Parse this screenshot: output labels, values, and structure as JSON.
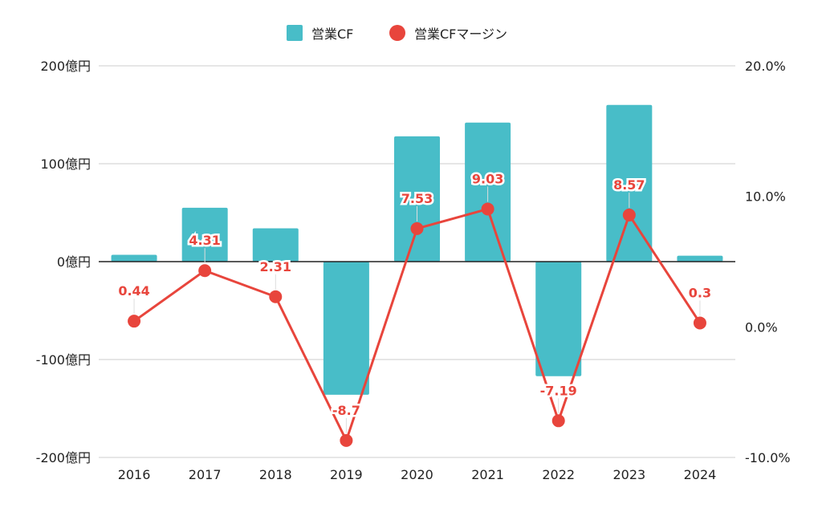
{
  "chart_data": {
    "type": "bar+line",
    "categories": [
      "2016",
      "2017",
      "2018",
      "2019",
      "2020",
      "2021",
      "2022",
      "2023",
      "2024"
    ],
    "series": [
      {
        "name": "営業CF",
        "type": "bar",
        "axis": "left",
        "color": "#48bdc8",
        "values": [
          7,
          55,
          34,
          -136,
          128,
          142,
          -117,
          160,
          6
        ]
      },
      {
        "name": "営業CFマージン",
        "type": "line",
        "axis": "right",
        "color": "#e8453c",
        "values": [
          0.44,
          4.31,
          2.31,
          -8.7,
          7.53,
          9.03,
          -7.19,
          8.57,
          0.3
        ],
        "labels": [
          "0.44",
          "4.31",
          "2.31",
          "-8.7",
          "7.53",
          "9.03",
          "-7.19",
          "8.57",
          "0.3"
        ]
      }
    ],
    "y_left": {
      "ylim": [
        -200,
        200
      ],
      "ticks": [
        200,
        100,
        0,
        -100,
        -200
      ],
      "tick_labels": [
        "200億円",
        "100億円",
        "0億円",
        "-100億円",
        "-200億円"
      ]
    },
    "y_right": {
      "ylim": [
        -10,
        20
      ],
      "ticks": [
        20,
        10,
        0,
        -10
      ],
      "tick_labels": [
        "20.0%",
        "10.0%",
        "0.0%",
        "-10.0%"
      ]
    },
    "legend": {
      "position": "top-center",
      "items": [
        "営業CF",
        "営業CFマージン"
      ]
    },
    "grid": true
  }
}
